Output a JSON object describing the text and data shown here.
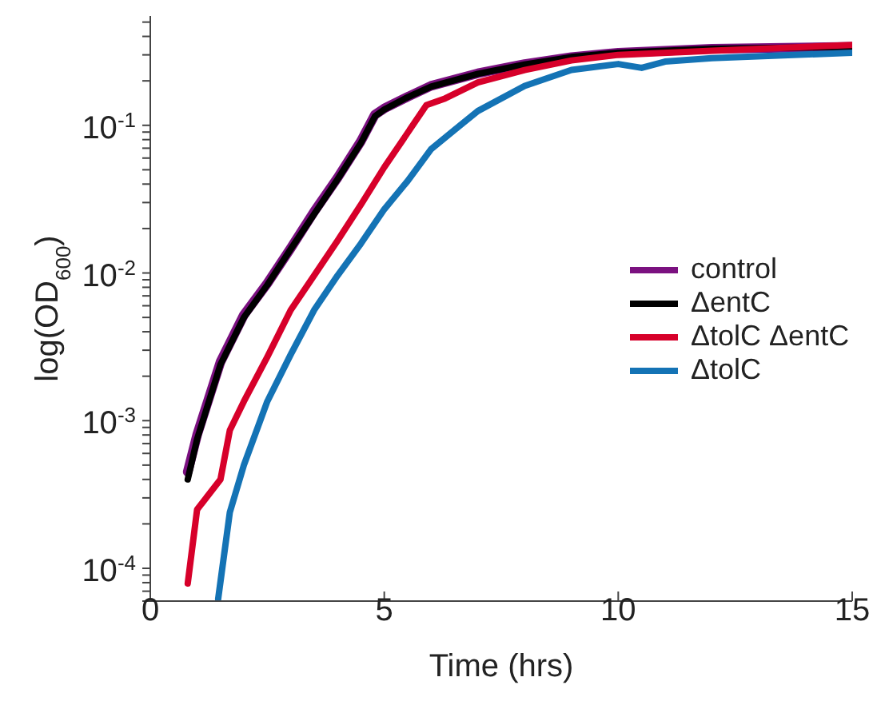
{
  "chart_data": {
    "type": "line",
    "xlabel": "Time (hrs)",
    "ylabel": "log(OD$_{600}$)",
    "log": "y",
    "xlim": [
      0,
      15
    ],
    "xticks": [
      0,
      5,
      10,
      15
    ],
    "ylim": [
      6e-05,
      0.55
    ],
    "yticks": [
      {
        "value": 6e-05,
        "label": null
      },
      {
        "value": 7e-05,
        "label": null
      },
      {
        "value": 8e-05,
        "label": null
      },
      {
        "value": 9e-05,
        "label": null
      },
      {
        "value": 0.0001,
        "label": "10$^{-4}$"
      },
      {
        "value": 0.0002,
        "label": null
      },
      {
        "value": 0.0003,
        "label": null
      },
      {
        "value": 0.0004,
        "label": null
      },
      {
        "value": 0.0005,
        "label": null
      },
      {
        "value": 0.0006,
        "label": null
      },
      {
        "value": 0.0007,
        "label": null
      },
      {
        "value": 0.0008,
        "label": null
      },
      {
        "value": 0.0009,
        "label": null
      },
      {
        "value": 0.001,
        "label": "10$^{-3}$"
      },
      {
        "value": 0.002,
        "label": null
      },
      {
        "value": 0.003,
        "label": null
      },
      {
        "value": 0.004,
        "label": null
      },
      {
        "value": 0.005,
        "label": null
      },
      {
        "value": 0.006,
        "label": null
      },
      {
        "value": 0.007,
        "label": null
      },
      {
        "value": 0.008,
        "label": null
      },
      {
        "value": 0.009,
        "label": null
      },
      {
        "value": 0.01,
        "label": "10$^{-2}$"
      },
      {
        "value": 0.02,
        "label": null
      },
      {
        "value": 0.03,
        "label": null
      },
      {
        "value": 0.04,
        "label": null
      },
      {
        "value": 0.05,
        "label": null
      },
      {
        "value": 0.06,
        "label": null
      },
      {
        "value": 0.07,
        "label": null
      },
      {
        "value": 0.08,
        "label": null
      },
      {
        "value": 0.09,
        "label": null
      },
      {
        "value": 0.1,
        "label": "10$^{-1}$"
      },
      {
        "value": 0.2,
        "label": null
      },
      {
        "value": 0.3,
        "label": null
      },
      {
        "value": 0.4,
        "label": null
      },
      {
        "value": 0.5,
        "label": null
      }
    ],
    "grid": false,
    "legend": "right",
    "line_style": "solid",
    "series": [
      {
        "name": "control",
        "color": "#7b1180",
        "x": [
          0.8,
          1,
          1.5,
          2,
          2.5,
          3,
          3.5,
          4,
          4.5,
          4.8,
          5,
          5.5,
          6,
          7,
          8,
          9,
          10,
          12,
          15
        ],
        "values": [
          0.00045,
          0.0008,
          0.0025,
          0.0052,
          0.0085,
          0.0147,
          0.026,
          0.044,
          0.078,
          0.118,
          0.13,
          0.156,
          0.185,
          0.225,
          0.26,
          0.29,
          0.31,
          0.33,
          0.34
        ]
      },
      {
        "name": "ΔentC",
        "color": "#000000",
        "x": [
          0.8,
          1,
          1.5,
          2,
          2.5,
          3,
          3.5,
          4,
          4.5,
          4.8,
          5,
          5.5,
          6,
          7,
          8,
          9,
          10,
          12,
          15
        ],
        "values": [
          0.0004,
          0.00075,
          0.0024,
          0.005,
          0.0083,
          0.0145,
          0.025,
          0.043,
          0.076,
          0.115,
          0.128,
          0.155,
          0.183,
          0.223,
          0.258,
          0.29,
          0.31,
          0.33,
          0.34
        ]
      },
      {
        "name": "ΔtolC ΔentC",
        "color": "#d7002a",
        "x": [
          0.8,
          1,
          1.5,
          1.7,
          2,
          2.5,
          3,
          3.5,
          4,
          4.5,
          5,
          5.5,
          5.9,
          6.3,
          7,
          8,
          9,
          10,
          12,
          15
        ],
        "values": [
          7.9e-05,
          0.00025,
          0.0004,
          0.00086,
          0.00135,
          0.0027,
          0.0056,
          0.0096,
          0.0165,
          0.029,
          0.052,
          0.089,
          0.137,
          0.152,
          0.195,
          0.237,
          0.275,
          0.3,
          0.32,
          0.35
        ]
      },
      {
        "name": "ΔtolC",
        "color": "#1473b5",
        "x": [
          1.45,
          1.7,
          2,
          2.5,
          3,
          3.5,
          4,
          4.5,
          5,
          5.5,
          6,
          6.5,
          7,
          8,
          9,
          10,
          10.5,
          11,
          12,
          15
        ],
        "values": [
          6.2e-05,
          0.00024,
          0.0005,
          0.00135,
          0.0028,
          0.0056,
          0.0096,
          0.0158,
          0.027,
          0.042,
          0.069,
          0.093,
          0.125,
          0.185,
          0.237,
          0.26,
          0.245,
          0.27,
          0.285,
          0.31
        ]
      }
    ]
  }
}
